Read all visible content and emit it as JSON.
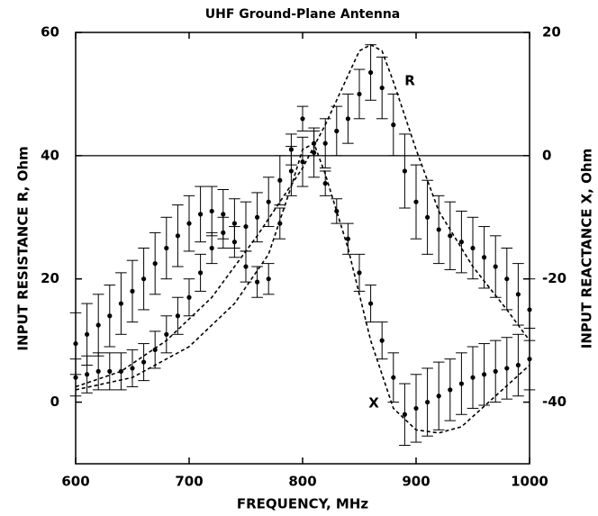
{
  "chart_data": {
    "type": "line",
    "title": "UHF Ground-Plane Antenna",
    "x_label": "FREQUENCY, MHz",
    "y_label": "INPUT RESISTANCE  R, Ohm",
    "y2_label": "INPUT REACTANCE  X, Ohm",
    "xlim": [
      600,
      1000
    ],
    "xticks": [
      600,
      700,
      800,
      900,
      1000
    ],
    "ylim": [
      -10,
      60
    ],
    "yticks": [
      0,
      20,
      40,
      60
    ],
    "y2lim": [
      -50,
      20
    ],
    "y2ticks": [
      -40,
      -20,
      0,
      20
    ],
    "y2_reference_line": 0,
    "annotations": [
      "R",
      "X"
    ],
    "series": [
      {
        "style": "measured",
        "axis": "y",
        "color": "#000000",
        "x": [
          600,
          610,
          620,
          630,
          640,
          650,
          660,
          670,
          680,
          690,
          700,
          710,
          720,
          730,
          740,
          750,
          760,
          770,
          780,
          790,
          800,
          810,
          820,
          830,
          840,
          850,
          860,
          870,
          880,
          890,
          900,
          910,
          920,
          930,
          940,
          950,
          960,
          970,
          980,
          990,
          1000
        ],
        "values": [
          9.5,
          11,
          12.5,
          14,
          16,
          18,
          20,
          22.5,
          25,
          27,
          29,
          30.5,
          31,
          30.5,
          29,
          28.5,
          30,
          32.5,
          36,
          37.5,
          39,
          40.5,
          42,
          44,
          46,
          50,
          53.5,
          51,
          45,
          37.5,
          32.5,
          30,
          28,
          27,
          26,
          25,
          23.5,
          22,
          20,
          17.5,
          15
        ],
        "errors": [
          5,
          5,
          5,
          5,
          5,
          5,
          5,
          5,
          5,
          5,
          4.5,
          4.5,
          4,
          4,
          4,
          4,
          4,
          4,
          4,
          4,
          4,
          4,
          4,
          4,
          4,
          4,
          4.5,
          5,
          5,
          6,
          6,
          6,
          5.5,
          5.5,
          5,
          5,
          5,
          5,
          5,
          5,
          5
        ]
      },
      {
        "style": "measured",
        "axis": "y2",
        "color": "#000000",
        "x": [
          600,
          610,
          620,
          630,
          640,
          650,
          660,
          670,
          680,
          690,
          700,
          710,
          720,
          730,
          740,
          750,
          760,
          770,
          780,
          790,
          800,
          810,
          820,
          830,
          840,
          850,
          860,
          870,
          880,
          890,
          900,
          910,
          920,
          930,
          940,
          950,
          960,
          970,
          980,
          990,
          1000
        ],
        "values": [
          -36,
          -35.5,
          -35,
          -35,
          -35,
          -34.5,
          -33.5,
          -31.5,
          -29,
          -26,
          -23,
          -19,
          -15,
          -12.5,
          -14,
          -18,
          -20.5,
          -20,
          -11,
          1,
          6,
          2,
          -4.5,
          -9,
          -13.5,
          -19,
          -24,
          -30,
          -36,
          -42,
          -41,
          -40,
          -39,
          -38,
          -37,
          -36,
          -35.5,
          -35,
          -34.5,
          -34,
          -33
        ],
        "errors": [
          3,
          3,
          3,
          3,
          3,
          3,
          3,
          3,
          3,
          3,
          3,
          3,
          2.5,
          2.5,
          2.5,
          2.5,
          2.5,
          2.5,
          2.5,
          2.5,
          2,
          2,
          2,
          2,
          2.5,
          3,
          3,
          3,
          4,
          5,
          5.5,
          5.5,
          5.5,
          5,
          5,
          5,
          5,
          5,
          5,
          5,
          5
        ]
      },
      {
        "style": "model",
        "axis": "y",
        "color": "#000000",
        "x": [
          600,
          640,
          680,
          720,
          760,
          800,
          820,
          840,
          850,
          860,
          870,
          880,
          900,
          920,
          950,
          980,
          1000
        ],
        "values": [
          2.5,
          5,
          10,
          17,
          27,
          38,
          45,
          53,
          57,
          58,
          57,
          52,
          41,
          31,
          22,
          15,
          10
        ]
      },
      {
        "style": "model",
        "axis": "y2",
        "color": "#000000",
        "x": [
          600,
          650,
          700,
          740,
          770,
          790,
          800,
          810,
          820,
          840,
          860,
          880,
          900,
          920,
          940,
          970,
          1000
        ],
        "values": [
          -38,
          -36,
          -31,
          -24,
          -16,
          -5,
          1,
          2,
          -3,
          -15,
          -30,
          -41,
          -44.5,
          -45,
          -44,
          -39,
          -34
        ]
      }
    ]
  }
}
